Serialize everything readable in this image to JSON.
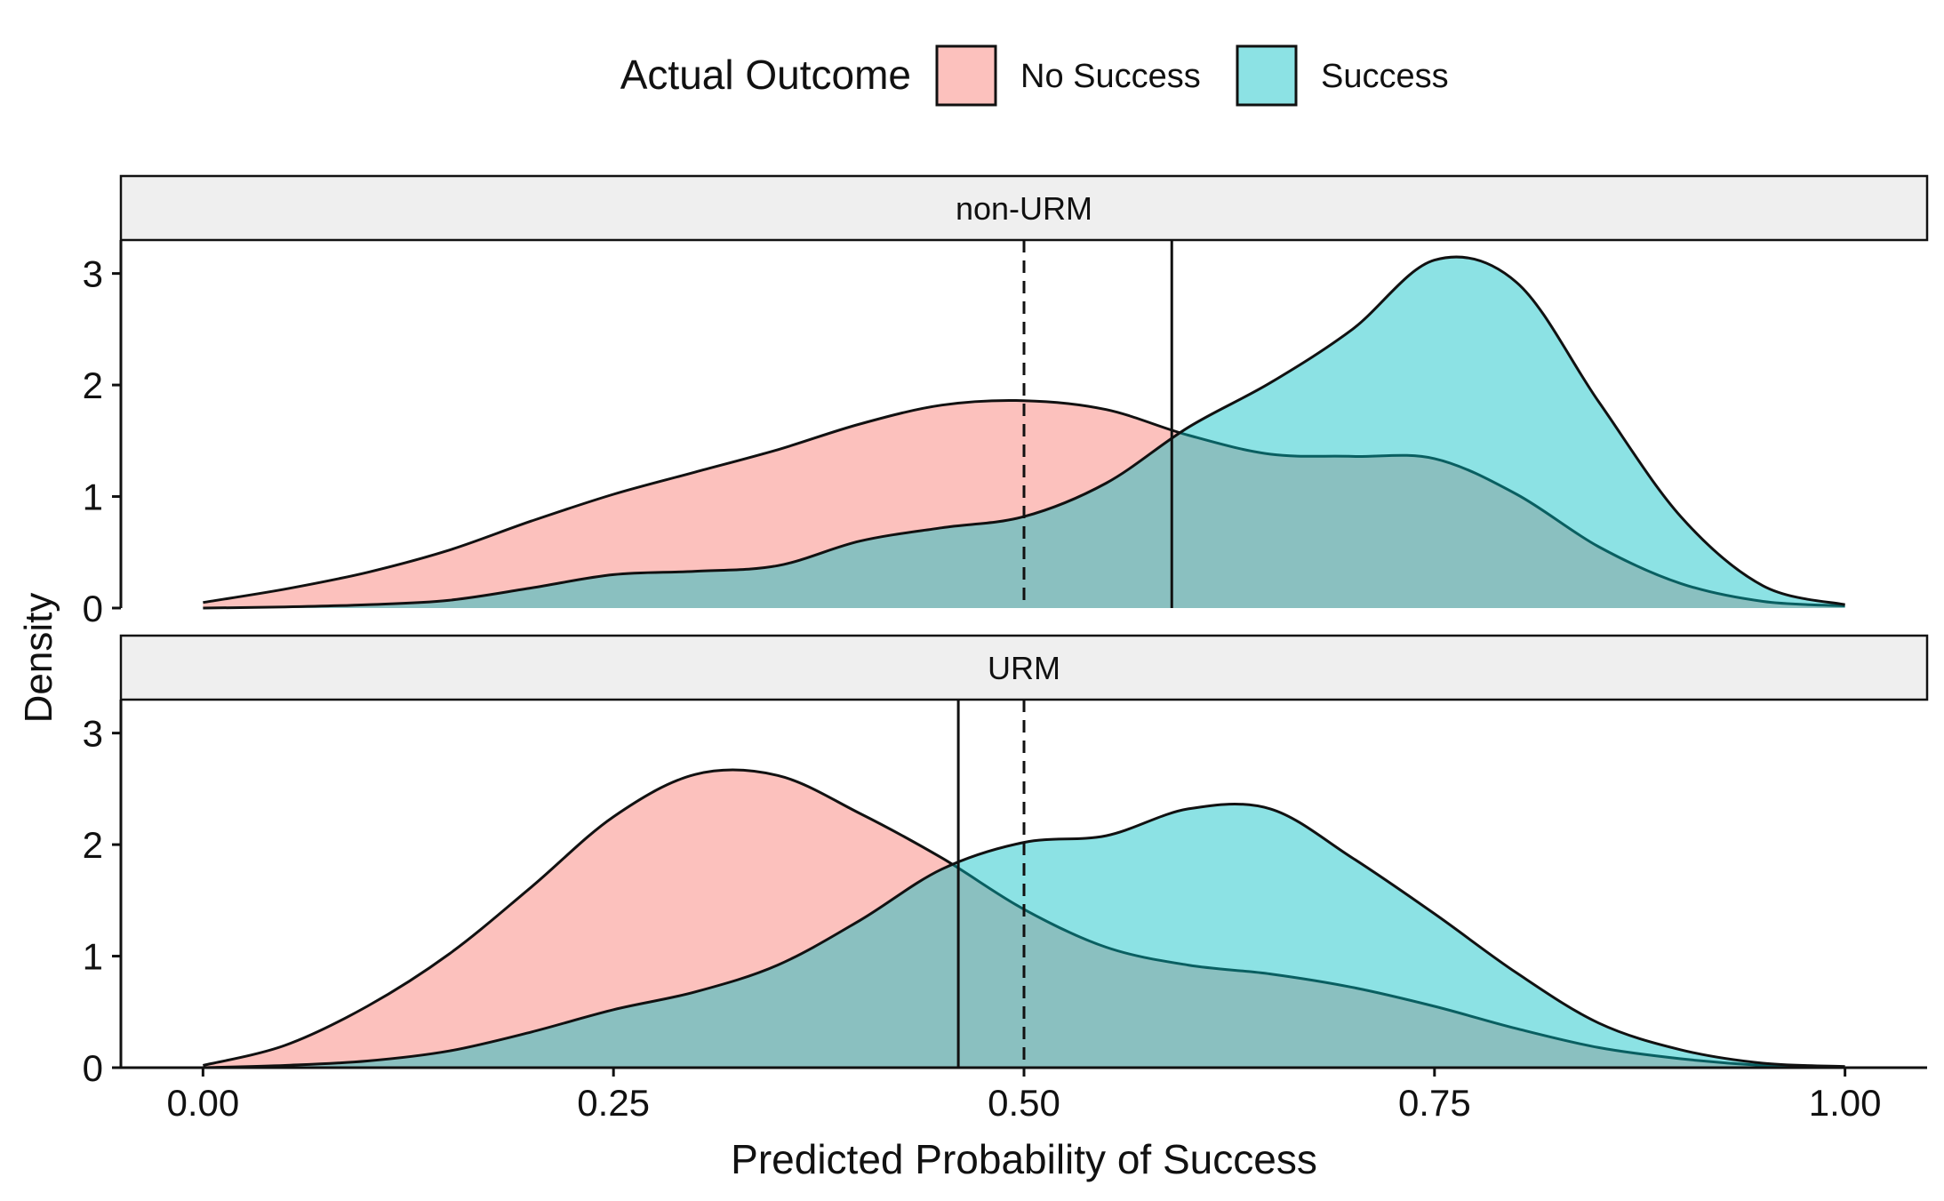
{
  "chart_data": {
    "type": "density",
    "xlabel": "Predicted Probability of Success",
    "ylabel": "Density",
    "xlim": [
      -0.05,
      1.05
    ],
    "ylim": [
      0,
      3.3
    ],
    "x_ticks": [
      0,
      0.25,
      0.5,
      0.75,
      1
    ],
    "x_tick_labels": [
      "0.00",
      "0.25",
      "0.50",
      "0.75",
      "1.00"
    ],
    "y_ticks": [
      0,
      1,
      2,
      3
    ],
    "y_tick_labels": [
      "0",
      "1",
      "2",
      "3"
    ],
    "legend": {
      "title": "Actual Outcome",
      "position": "top",
      "entries": [
        {
          "key": "no_success",
          "label": "No Success",
          "color": "#F8766D"
        },
        {
          "key": "success",
          "label": "Success",
          "color": "#00BFC4"
        }
      ]
    },
    "fill_alpha": 0.45,
    "reference_line_dashed": 0.5,
    "panels": [
      {
        "label": "non-URM",
        "threshold": 0.59,
        "series": [
          {
            "name": "No Success",
            "color": "#F8766D",
            "x": [
              0,
              0.05,
              0.1,
              0.15,
              0.2,
              0.25,
              0.3,
              0.35,
              0.4,
              0.45,
              0.5,
              0.55,
              0.6,
              0.65,
              0.7,
              0.75,
              0.8,
              0.85,
              0.9,
              0.95,
              1
            ],
            "y": [
              0.05,
              0.17,
              0.32,
              0.52,
              0.78,
              1.02,
              1.22,
              1.42,
              1.65,
              1.82,
              1.86,
              1.78,
              1.55,
              1.38,
              1.36,
              1.34,
              1.02,
              0.55,
              0.22,
              0.06,
              0.02
            ]
          },
          {
            "name": "Success",
            "color": "#00BFC4",
            "x": [
              0,
              0.05,
              0.1,
              0.15,
              0.2,
              0.25,
              0.3,
              0.35,
              0.4,
              0.45,
              0.5,
              0.55,
              0.6,
              0.65,
              0.7,
              0.75,
              0.8,
              0.85,
              0.9,
              0.95,
              1
            ],
            "y": [
              0,
              0.01,
              0.03,
              0.07,
              0.18,
              0.3,
              0.33,
              0.38,
              0.6,
              0.72,
              0.82,
              1.12,
              1.62,
              2.02,
              2.5,
              3.12,
              2.92,
              1.85,
              0.82,
              0.2,
              0.03
            ]
          }
        ]
      },
      {
        "label": "URM",
        "threshold": 0.46,
        "series": [
          {
            "name": "No Success",
            "color": "#F8766D",
            "x": [
              0,
              0.05,
              0.1,
              0.15,
              0.2,
              0.25,
              0.3,
              0.35,
              0.4,
              0.45,
              0.5,
              0.55,
              0.6,
              0.65,
              0.7,
              0.75,
              0.8,
              0.85,
              0.9,
              0.95,
              1
            ],
            "y": [
              0.02,
              0.2,
              0.55,
              1.02,
              1.62,
              2.25,
              2.63,
              2.62,
              2.28,
              1.88,
              1.42,
              1.08,
              0.92,
              0.84,
              0.72,
              0.55,
              0.35,
              0.18,
              0.08,
              0.02,
              0
            ]
          },
          {
            "name": "Success",
            "color": "#00BFC4",
            "x": [
              0,
              0.05,
              0.1,
              0.15,
              0.2,
              0.25,
              0.3,
              0.35,
              0.4,
              0.45,
              0.5,
              0.55,
              0.6,
              0.65,
              0.7,
              0.75,
              0.8,
              0.85,
              0.9,
              0.95,
              1
            ],
            "y": [
              0,
              0.02,
              0.06,
              0.15,
              0.32,
              0.52,
              0.68,
              0.92,
              1.32,
              1.78,
              2.02,
              2.08,
              2.32,
              2.32,
              1.88,
              1.38,
              0.85,
              0.4,
              0.16,
              0.04,
              0.01
            ]
          }
        ]
      }
    ]
  }
}
